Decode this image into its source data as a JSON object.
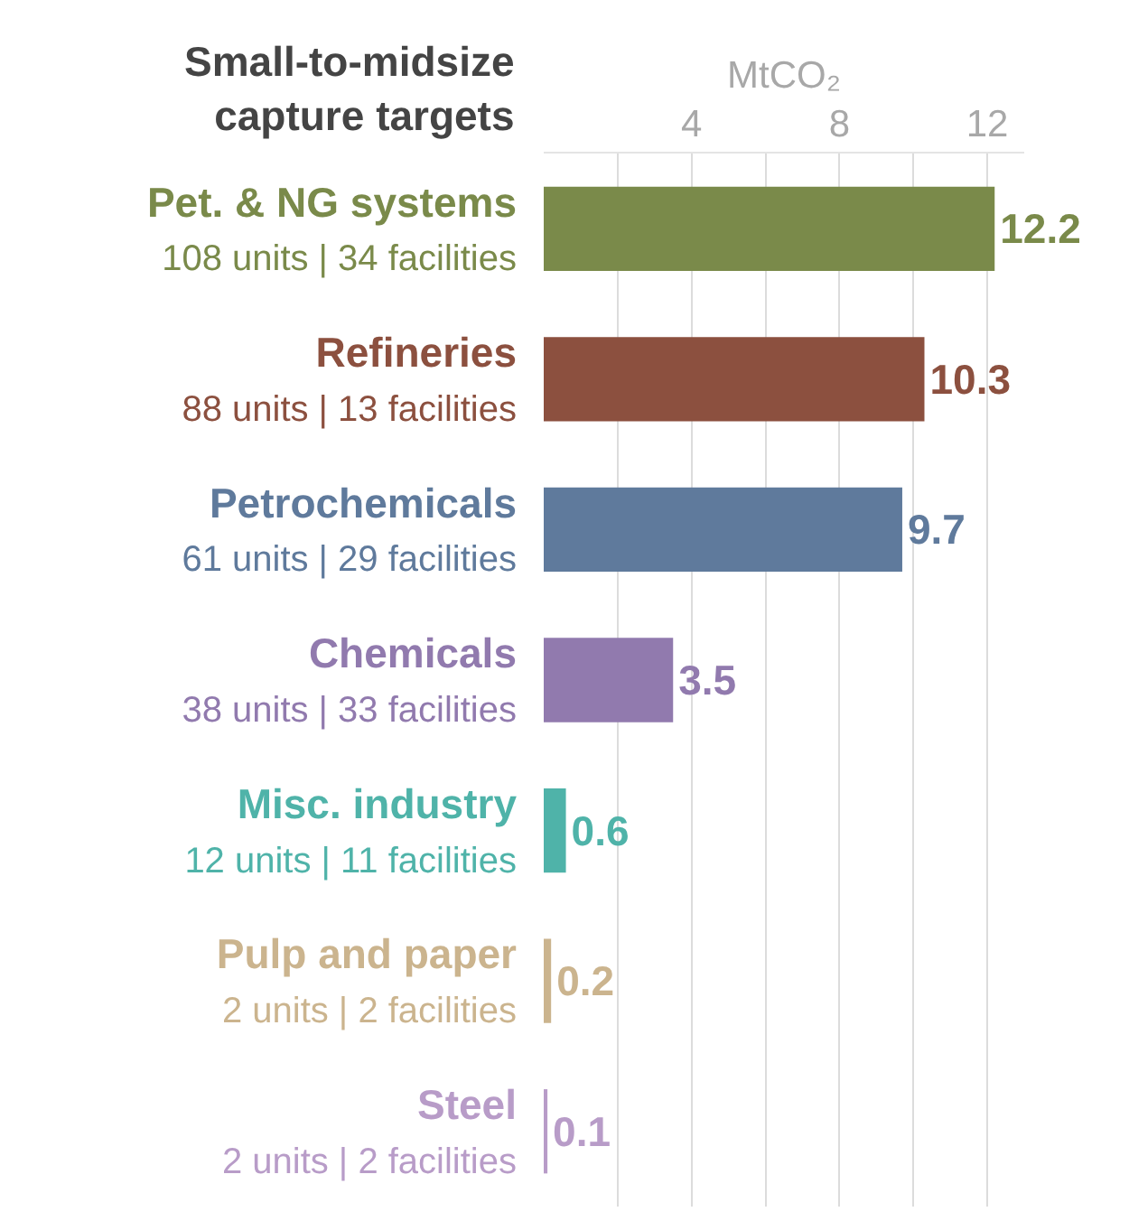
{
  "chart_data": {
    "type": "bar",
    "orientation": "horizontal",
    "title": "Small-to-midsize capture targets",
    "xlabel": "MtCO₂",
    "categories": [
      "Pet. & NG systems\n108 units | 34 facilities",
      "Refineries\n88 units | 13 facilities",
      "Petrochemicals\n61 units | 29 facilities",
      "Chemicals\n38 units | 33 facilities",
      "Misc. industry\n12 units | 11 facilities",
      "Pulp and paper\n2 units | 2 facilities",
      "Steel\n2 units | 2 facilities"
    ],
    "values": [
      12.2,
      10.3,
      9.7,
      3.5,
      0.6,
      0.2,
      0.1
    ],
    "colors": [
      "#7a8a4a",
      "#8c503f",
      "#5f7a9c",
      "#917aae",
      "#4fb3a9",
      "#cbb48e",
      "#b89cc8"
    ],
    "xlim": [
      0,
      13
    ],
    "xticks": [
      {
        "value": 2,
        "label": null
      },
      4,
      {
        "value": 6,
        "label": null
      },
      8,
      {
        "value": 10,
        "label": null
      },
      12
    ],
    "grid": "x",
    "data_labels": true
  }
}
